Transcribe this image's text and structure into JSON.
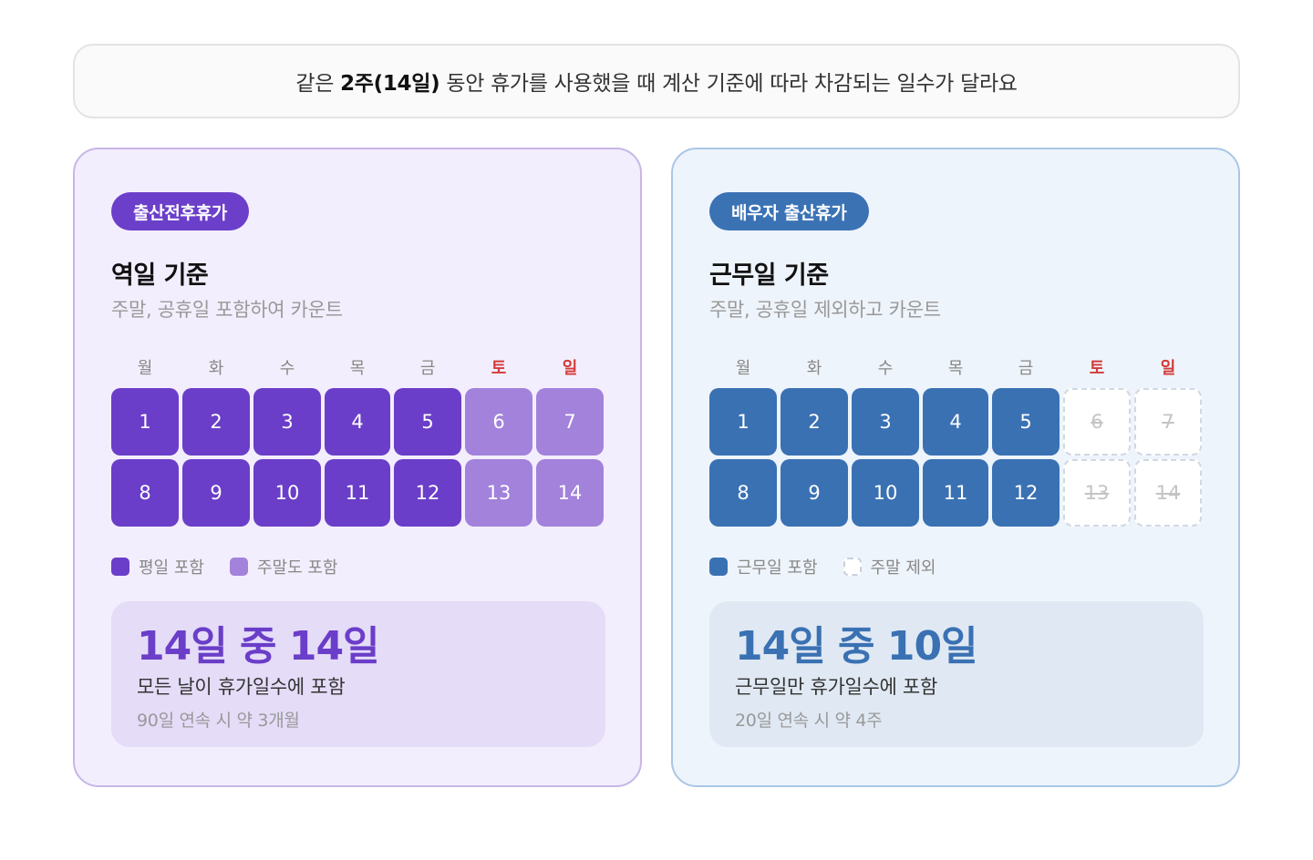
{
  "banner": {
    "prefix": "같은 ",
    "bold": "2주(14일)",
    "suffix": " 동안 휴가를 사용했을 때 계산 기준에 따라 차감되는 일수가 달라요"
  },
  "colors": {
    "purple_primary": "#6a3ec8",
    "purple_light": "#a282db",
    "blue_primary": "#3a71b3",
    "weekend_label": "#d33a3a"
  },
  "cards": [
    {
      "pill": "출산전후휴가",
      "title": "역일 기준",
      "subtitle": "주말, 공휴일 포함하여 카운트",
      "weekdays": [
        "월",
        "화",
        "수",
        "목",
        "금",
        "토",
        "일"
      ],
      "weeks": [
        [
          "1",
          "2",
          "3",
          "4",
          "5",
          "6",
          "7"
        ],
        [
          "8",
          "9",
          "10",
          "11",
          "12",
          "13",
          "14"
        ]
      ],
      "legend": [
        "평일 포함",
        "주말도 포함"
      ],
      "result_big": "14일 중 14일",
      "result_line1": "모든 날이 휴가일수에 포함",
      "result_line2": "90일 연속 시 약 3개월"
    },
    {
      "pill": "배우자 출산휴가",
      "title": "근무일 기준",
      "subtitle": "주말, 공휴일 제외하고 카운트",
      "weekdays": [
        "월",
        "화",
        "수",
        "목",
        "금",
        "토",
        "일"
      ],
      "weeks": [
        [
          "1",
          "2",
          "3",
          "4",
          "5",
          "6",
          "7"
        ],
        [
          "8",
          "9",
          "10",
          "11",
          "12",
          "13",
          "14"
        ]
      ],
      "legend": [
        "근무일 포함",
        "주말 제외"
      ],
      "result_big": "14일 중 10일",
      "result_line1": "근무일만 휴가일수에 포함",
      "result_line2": "20일 연속 시 약 4주"
    }
  ]
}
